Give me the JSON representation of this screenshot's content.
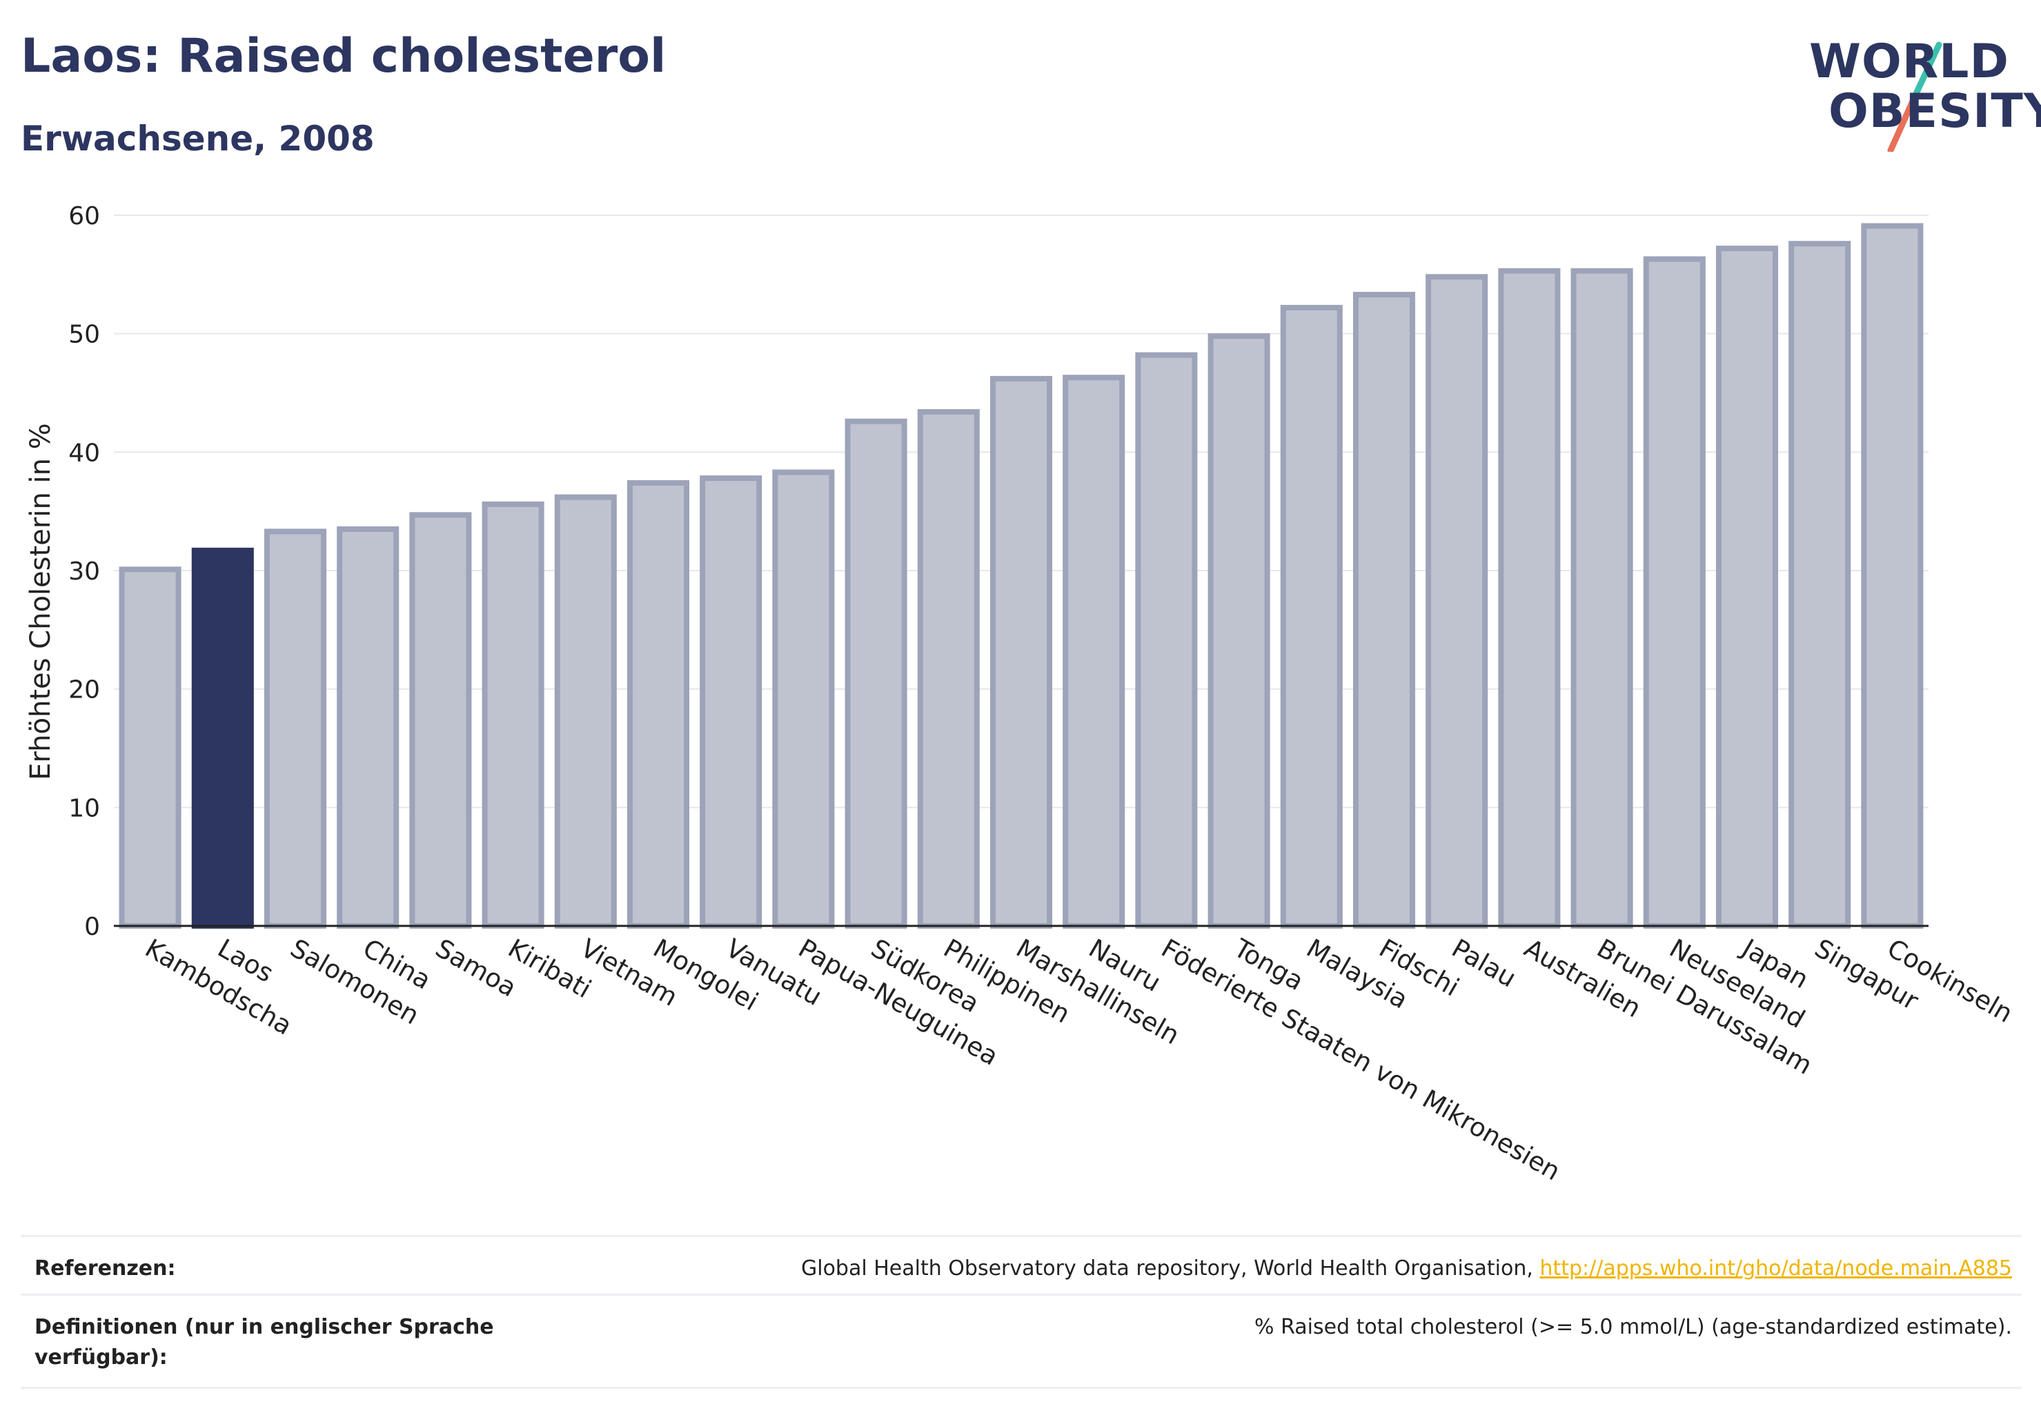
{
  "header": {
    "title": "Laos: Raised cholesterol",
    "subtitle": "Erwachsene, 2008"
  },
  "logo": {
    "line1": "WORLD",
    "line2": "OBESITY",
    "colors": {
      "text": "#2c3660",
      "slash_top": "#3bbfad",
      "slash_bottom": "#e8705a"
    }
  },
  "chart_data": {
    "type": "bar",
    "title": "Laos: Raised cholesterol",
    "subtitle": "Erwachsene, 2008",
    "xlabel": "",
    "ylabel": "Erhöhtes Cholesterin in %",
    "ylim": [
      0,
      60
    ],
    "yticks": [
      0,
      10,
      20,
      30,
      40,
      50,
      60
    ],
    "grid": true,
    "highlight": "Laos",
    "colors": {
      "bar": "#bfc3d0",
      "bar_border": "#9da3b8",
      "highlight": "#2c3660"
    },
    "categories": [
      "Kambodscha",
      "Laos",
      "Salomonen",
      "China",
      "Samoa",
      "Kiribati",
      "Vietnam",
      "Mongolei",
      "Vanuatu",
      "Papua-Neuguinea",
      "Südkorea",
      "Philippinen",
      "Marshallinseln",
      "Nauru",
      "Föderierte Staaten von Mikronesien",
      "Tonga",
      "Malaysia",
      "Fidschi",
      "Palau",
      "Australien",
      "Brunei Darussalam",
      "Neuseeland",
      "Japan",
      "Singapur",
      "Cookinseln"
    ],
    "values": [
      30.1,
      31.7,
      33.3,
      33.5,
      34.7,
      35.6,
      36.2,
      37.4,
      37.8,
      38.3,
      42.6,
      43.4,
      46.2,
      46.3,
      48.2,
      49.8,
      52.2,
      53.3,
      54.8,
      55.3,
      55.3,
      56.3,
      57.2,
      57.6,
      59.1
    ]
  },
  "footer": {
    "references_label": "Referenzen:",
    "references_text": "Global Health Observatory data repository, World Health Organisation,",
    "references_link": "http://apps.who.int/gho/data/node.main.A885",
    "definitions_label": "Definitionen (nur in englischer Sprache verfügbar):",
    "definitions_text": "% Raised total cholesterol (>= 5.0 mmol/L) (age-standardized estimate)."
  }
}
